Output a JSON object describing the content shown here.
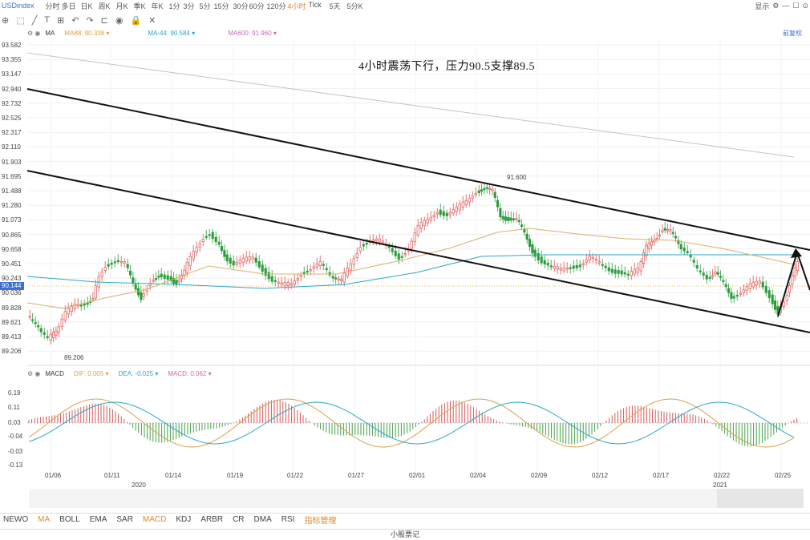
{
  "toolbar": {
    "symbol": "USDindex",
    "timeframes": [
      "分时",
      "多日",
      "日K",
      "周K",
      "月K",
      "季K",
      "年K",
      "1分",
      "3分",
      "5分",
      "15分",
      "30分",
      "60分",
      "120分",
      "4小时",
      "Tick",
      "5天",
      "5分K"
    ],
    "active_timeframe": "4小时",
    "right_label": "显示"
  },
  "legend": {
    "ma": "MA",
    "items": [
      {
        "text": "MA88: 90.338",
        "color": "#e0a040"
      },
      {
        "text": "MA-44: 90.584",
        "color": "#2aa8c6"
      },
      {
        "text": "MA600: 91.960",
        "color": "#c86ab0"
      }
    ],
    "fq": "前复权"
  },
  "annotation": "4小时震荡下行，压力90.5支撑89.5",
  "price_axis": [
    "93.582",
    "93.355",
    "93.147",
    "92.940",
    "92.732",
    "92.525",
    "92.317",
    "92.110",
    "91.903",
    "91.695",
    "91.488",
    "91.280",
    "91.073",
    "90.865",
    "90.658",
    "90.451",
    "90.243",
    "90.036",
    "89.828",
    "89.621",
    "89.413",
    "89.206"
  ],
  "current_price": "90.144",
  "high_label": "91.600",
  "low_label": "89.206",
  "macd": {
    "name": "MACD",
    "items": [
      {
        "text": "DIF: 0.005",
        "color": "#e0a040"
      },
      {
        "text": "DEA: -0.025",
        "color": "#2aa8c6"
      },
      {
        "text": "MACD: 0.062",
        "color": "#c86ab0"
      }
    ],
    "axis": [
      "0.19",
      "0.11",
      "0.03",
      "-0.04",
      "-0.03",
      "-0.13"
    ]
  },
  "x_axis": [
    "01/06",
    "01/11",
    "01/14",
    "01/19",
    "01/22",
    "01/27",
    "02/01",
    "02/04",
    "02/09",
    "02/12",
    "02/17",
    "02/22",
    "02/25"
  ],
  "years": [
    "2020",
    "2021"
  ],
  "tabs": [
    "NEWO",
    "MA",
    "BOLL",
    "EMA",
    "SAR",
    "MACD",
    "KDJ",
    "ARBR",
    "CR",
    "DMA",
    "RSI"
  ],
  "active_tab_primary": "MA",
  "active_tab_indicator": "MACD",
  "manage_label": "指标管理",
  "footer": "小股票记"
}
